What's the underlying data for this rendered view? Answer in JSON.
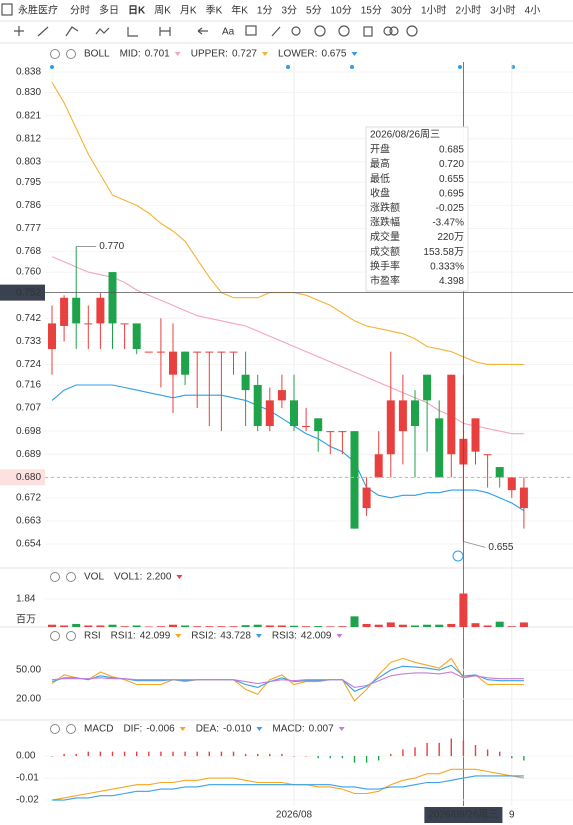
{
  "toolbar": {
    "stock": "永胜医疗",
    "periods": [
      "分时",
      "多日",
      "日K",
      "周K",
      "月K",
      "季K",
      "年K",
      "1分",
      "3分",
      "5分",
      "10分",
      "15分",
      "30分",
      "1小时",
      "2小时",
      "3小时",
      "4小"
    ],
    "active": "日K",
    "text_tool": "Aa"
  },
  "tooltip": {
    "date": "2026/08/26周三",
    "rows": [
      [
        "开盘",
        "0.685"
      ],
      [
        "最高",
        "0.720"
      ],
      [
        "最低",
        "0.655"
      ],
      [
        "收盘",
        "0.695"
      ],
      [
        "涨跌额",
        "-0.025"
      ],
      [
        "涨跌幅",
        "-3.47%"
      ],
      [
        "成交量",
        "220万"
      ],
      [
        "成交额",
        "153.58万"
      ],
      [
        "换手率",
        "0.333%"
      ],
      [
        "市盈率",
        "4.398"
      ]
    ],
    "value_colors": [
      "#1ea34a",
      "#666666",
      "#1ea34a",
      "#1ea34a",
      "#1ea34a",
      "#1ea34a",
      "#666666",
      "#666666",
      "#666666",
      "#666666"
    ]
  },
  "chart_data": [
    {
      "type": "candlestick",
      "indicator": "BOLL",
      "up_color": "#e8403f",
      "down_color": "#1ea34a",
      "categories": [
        null,
        null,
        null,
        null,
        null,
        null,
        null,
        null,
        null,
        null,
        null,
        null,
        null,
        null,
        null,
        null,
        null,
        null,
        null,
        null,
        "2026/08",
        null,
        null,
        null,
        null,
        null,
        null,
        null,
        null,
        null,
        null,
        null,
        null,
        null,
        "2026/08/26周三",
        null,
        null,
        null,
        "9",
        null
      ],
      "open": [
        0.73,
        0.739,
        0.75,
        0.74,
        0.74,
        0.76,
        0.74,
        0.74,
        0.729,
        0.729,
        0.72,
        0.729,
        0.729,
        0.729,
        0.729,
        0.729,
        0.72,
        0.716,
        0.7,
        0.71,
        0.71,
        0.7,
        0.703,
        0.698,
        0.698,
        0.698,
        0.668,
        0.68,
        0.689,
        0.698,
        0.71,
        0.72,
        0.703,
        0.689,
        0.685,
        0.69,
        0.689,
        0.684,
        0.675,
        0.668
      ],
      "high": [
        0.747,
        0.751,
        0.77,
        0.747,
        0.752,
        0.76,
        0.74,
        0.74,
        0.729,
        0.742,
        0.74,
        0.729,
        0.729,
        0.729,
        0.729,
        0.729,
        0.729,
        0.72,
        0.715,
        0.72,
        0.72,
        0.707,
        0.703,
        0.698,
        0.698,
        0.698,
        0.68,
        0.698,
        0.729,
        0.72,
        0.714,
        0.72,
        0.71,
        0.72,
        0.72,
        0.703,
        0.689,
        0.684,
        0.68,
        0.68
      ],
      "low": [
        0.72,
        0.733,
        0.73,
        0.73,
        0.73,
        0.73,
        0.73,
        0.728,
        0.729,
        0.715,
        0.705,
        0.716,
        0.707,
        0.7,
        0.698,
        0.72,
        0.7,
        0.698,
        0.698,
        0.707,
        0.698,
        0.698,
        0.69,
        0.689,
        0.689,
        0.66,
        0.665,
        0.68,
        0.68,
        0.685,
        0.68,
        0.69,
        0.68,
        0.68,
        0.655,
        0.685,
        0.676,
        0.676,
        0.672,
        0.66
      ],
      "close": [
        0.74,
        0.75,
        0.74,
        0.74,
        0.75,
        0.74,
        0.74,
        0.73,
        0.729,
        0.729,
        0.729,
        0.72,
        0.729,
        0.729,
        0.729,
        0.729,
        0.714,
        0.7,
        0.71,
        0.714,
        0.7,
        0.7,
        0.698,
        0.698,
        0.698,
        0.66,
        0.676,
        0.689,
        0.71,
        0.71,
        0.7,
        0.71,
        0.68,
        0.72,
        0.695,
        0.703,
        0.689,
        0.68,
        0.68,
        0.676
      ],
      "series": [
        {
          "name": "MID:",
          "label": "0.701",
          "color": "#f4a6b8",
          "values": [
            0.766,
            0.764,
            0.762,
            0.76,
            0.759,
            0.758,
            0.756,
            0.753,
            0.751,
            0.749,
            0.747,
            0.745,
            0.743,
            0.742,
            0.741,
            0.74,
            0.739,
            0.737,
            0.735,
            0.733,
            0.731,
            0.729,
            0.727,
            0.725,
            0.723,
            0.721,
            0.719,
            0.717,
            0.715,
            0.713,
            0.711,
            0.709,
            0.706,
            0.704,
            0.701,
            0.7,
            0.699,
            0.698,
            0.697,
            0.697
          ]
        },
        {
          "name": "UPPER:",
          "label": "0.727",
          "color": "#f5b335",
          "values": [
            0.834,
            0.826,
            0.816,
            0.806,
            0.798,
            0.79,
            0.788,
            0.786,
            0.783,
            0.779,
            0.776,
            0.772,
            0.765,
            0.758,
            0.752,
            0.75,
            0.75,
            0.75,
            0.752,
            0.752,
            0.752,
            0.751,
            0.749,
            0.747,
            0.744,
            0.741,
            0.739,
            0.738,
            0.737,
            0.736,
            0.734,
            0.731,
            0.73,
            0.729,
            0.727,
            0.725,
            0.724,
            0.724,
            0.724,
            0.724
          ]
        },
        {
          "name": "LOWER:",
          "label": "0.675",
          "color": "#2f9ee8",
          "values": [
            0.71,
            0.714,
            0.716,
            0.716,
            0.716,
            0.716,
            0.715,
            0.714,
            0.713,
            0.712,
            0.711,
            0.712,
            0.712,
            0.712,
            0.712,
            0.711,
            0.71,
            0.708,
            0.706,
            0.703,
            0.7,
            0.697,
            0.695,
            0.692,
            0.69,
            0.686,
            0.676,
            0.673,
            0.672,
            0.673,
            0.673,
            0.674,
            0.674,
            0.675,
            0.675,
            0.675,
            0.674,
            0.672,
            0.67,
            0.667
          ]
        }
      ],
      "ylim": [
        0.6466,
        0.8419
      ],
      "yticks": [
        0.838,
        {
          "value": 0.83,
          "label": "0.830"
        },
        0.821,
        0.812,
        0.803,
        0.795,
        0.786,
        0.777,
        0.768,
        {
          "value": 0.76,
          "label": "0.760"
        },
        0.742,
        0.733,
        0.724,
        0.716,
        0.707,
        0.698,
        0.689,
        {
          "value": 0.68,
          "label": "0.680"
        },
        0.672,
        0.663,
        0.654
      ],
      "last_price": 0.68,
      "crosshair": {
        "index": 34,
        "price": 0.752
      },
      "max_label": {
        "index": 2,
        "value": 0.77,
        "label": "0.770"
      },
      "min_label": {
        "index": 34,
        "value": 0.655
      }
    },
    {
      "type": "bar",
      "indicator": "VOL",
      "unit": "百万",
      "series": [
        {
          "name": "VOL1:",
          "label": "2.200",
          "color": "#e8403f",
          "values": [
            0.15,
            0.1,
            0.2,
            0.1,
            0.1,
            0.15,
            0.05,
            0.1,
            0.03,
            0.05,
            0.15,
            0.1,
            0.05,
            0.05,
            0.05,
            0.05,
            0.12,
            0.15,
            0.1,
            0.1,
            0.08,
            0.05,
            0.06,
            0.04,
            0.05,
            0.7,
            0.2,
            0.15,
            0.3,
            0.15,
            0.1,
            0.15,
            0.15,
            0.2,
            2.2,
            0.25,
            0.1,
            0.35,
            0.05,
            0.3
          ]
        }
      ],
      "ylim": [
        0,
        2.43
      ],
      "yticks": [
        1.84
      ]
    },
    {
      "type": "line",
      "indicator": "RSI",
      "series": [
        {
          "name": "RSI1:",
          "label": "42.099",
          "color": "#f5a623",
          "values": [
            36,
            45,
            42,
            40,
            48,
            43,
            40,
            35,
            35,
            35,
            40,
            38,
            40,
            40,
            40,
            40,
            30,
            25,
            40,
            45,
            35,
            38,
            38,
            40,
            40,
            18,
            30,
            45,
            58,
            62,
            58,
            55,
            52,
            62,
            42.099,
            45,
            35,
            35,
            35,
            35
          ]
        },
        {
          "name": "RSI2:",
          "label": "43.728",
          "color": "#3aa0e8",
          "values": [
            38,
            42,
            42,
            40,
            44,
            42,
            41,
            39,
            39,
            39,
            40,
            39,
            40,
            40,
            40,
            40,
            35,
            32,
            38,
            42,
            38,
            39,
            39,
            40,
            40,
            28,
            33,
            42,
            50,
            54,
            53,
            52,
            50,
            55,
            43.728,
            45,
            40,
            39,
            39,
            39
          ]
        },
        {
          "name": "RSI3:",
          "label": "42.009",
          "color": "#c77ddb",
          "values": [
            40,
            41,
            41,
            41,
            42,
            41,
            41,
            40,
            40,
            40,
            40,
            40,
            40,
            40,
            40,
            40,
            38,
            36,
            38,
            40,
            39,
            40,
            40,
            40,
            40,
            32,
            34,
            39,
            44,
            46,
            47,
            47,
            46,
            48,
            42.009,
            44,
            42,
            41,
            41,
            41
          ]
        }
      ],
      "ylim": [
        3.5,
        75.9
      ],
      "yticks": [
        {
          "value": 50,
          "label": "50.00"
        },
        {
          "value": 20,
          "label": "20.00"
        }
      ]
    },
    {
      "type": "macd",
      "indicator": "MACD",
      "up_color": "#e8403f",
      "down_color": "#1ea34a",
      "series": [
        {
          "name": "DIF:",
          "label": "-0.006",
          "color": "#f5a623",
          "values": [
            -0.02,
            -0.019,
            -0.018,
            -0.017,
            -0.016,
            -0.015,
            -0.014,
            -0.013,
            -0.013,
            -0.012,
            -0.012,
            -0.011,
            -0.011,
            -0.01,
            -0.01,
            -0.01,
            -0.011,
            -0.012,
            -0.012,
            -0.012,
            -0.013,
            -0.013,
            -0.014,
            -0.014,
            -0.015,
            -0.017,
            -0.017,
            -0.016,
            -0.013,
            -0.011,
            -0.01,
            -0.008,
            -0.008,
            -0.006,
            -0.006,
            -0.006,
            -0.007,
            -0.008,
            -0.009,
            -0.01
          ]
        },
        {
          "name": "DEA:",
          "label": "-0.010",
          "color": "#3aa0e8",
          "values": [
            -0.02,
            -0.02,
            -0.019,
            -0.019,
            -0.018,
            -0.018,
            -0.017,
            -0.016,
            -0.016,
            -0.015,
            -0.015,
            -0.014,
            -0.014,
            -0.013,
            -0.013,
            -0.013,
            -0.013,
            -0.013,
            -0.013,
            -0.013,
            -0.013,
            -0.013,
            -0.013,
            -0.013,
            -0.014,
            -0.014,
            -0.015,
            -0.015,
            -0.014,
            -0.014,
            -0.013,
            -0.012,
            -0.012,
            -0.011,
            -0.01,
            -0.009,
            -0.009,
            -0.009,
            -0.009,
            -0.009
          ]
        },
        {
          "name": "MACD:",
          "label": "0.007",
          "color": "#c77ddb",
          "values": [
            0,
            0.001,
            0.001,
            0.002,
            0.002,
            0.002,
            0.002,
            0.002,
            0.002,
            0.002,
            0.002,
            0.002,
            0.002,
            0.002,
            0.002,
            0.002,
            0.001,
            0.001,
            0.001,
            0.001,
            0,
            0,
            -0.001,
            -0.001,
            -0.001,
            -0.003,
            -0.003,
            -0.002,
            0.001,
            0.003,
            0.004,
            0.006,
            0.006,
            0.008,
            0.007,
            0.005,
            0.003,
            0.002,
            -0.001,
            -0.002
          ]
        }
      ],
      "ylim": [
        -0.0227,
        0.0064
      ],
      "yticks": [
        {
          "value": 0,
          "label": "0.00"
        },
        {
          "value": -0.01,
          "label": "-0.01"
        },
        {
          "value": -0.02,
          "label": "-0.02"
        }
      ]
    }
  ]
}
